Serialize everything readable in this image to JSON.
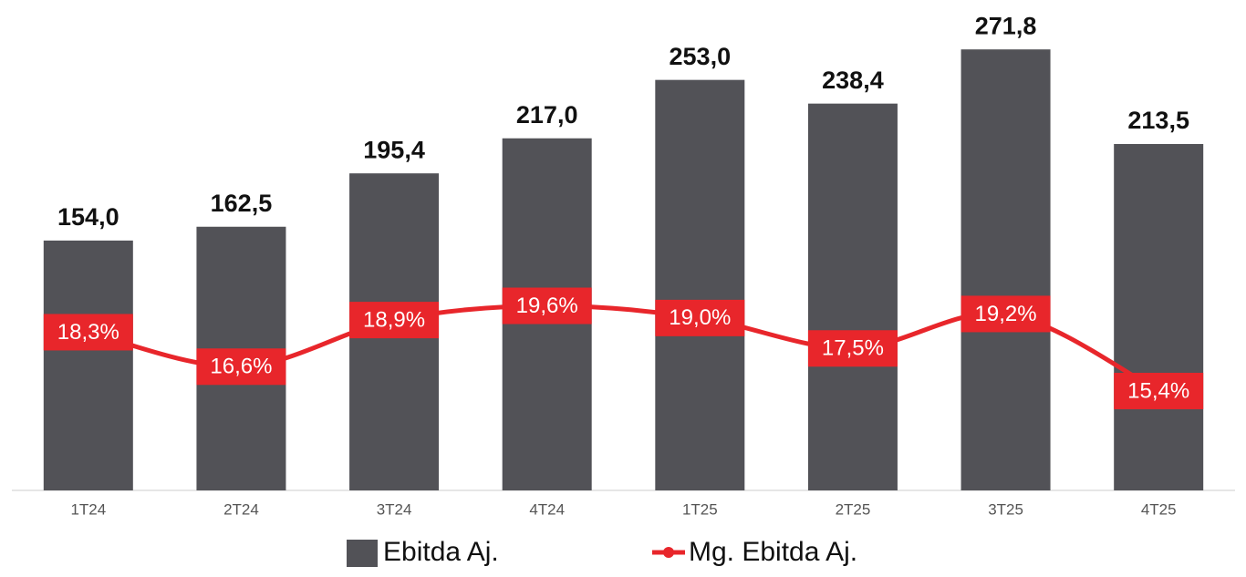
{
  "chart_data": {
    "type": "bar-line",
    "categories": [
      "1T24",
      "2T24",
      "3T24",
      "4T24",
      "1T25",
      "2T25",
      "3T25",
      "4T25"
    ],
    "ylim": [
      0,
      300
    ],
    "y2lim": [
      10.5,
      34.5
    ],
    "series": [
      {
        "name": "Ebitda Aj.",
        "type": "bar",
        "color": "#525257",
        "values": [
          154.0,
          162.5,
          195.4,
          217.0,
          253.0,
          238.4,
          271.8,
          213.5
        ],
        "value_labels": [
          "154,0",
          "162,5",
          "195,4",
          "217,0",
          "253,0",
          "238,4",
          "271,8",
          "213,5"
        ]
      },
      {
        "name": "Mg. Ebitda Aj.",
        "type": "line",
        "axis": "y2",
        "color": "#e8262b",
        "values": [
          18.3,
          16.6,
          18.9,
          19.6,
          19.0,
          17.5,
          19.2,
          15.4
        ],
        "value_labels": [
          "18,3%",
          "16,6%",
          "18,9%",
          "19,6%",
          "19,0%",
          "17,5%",
          "19,2%",
          "15,4%"
        ]
      }
    ]
  }
}
